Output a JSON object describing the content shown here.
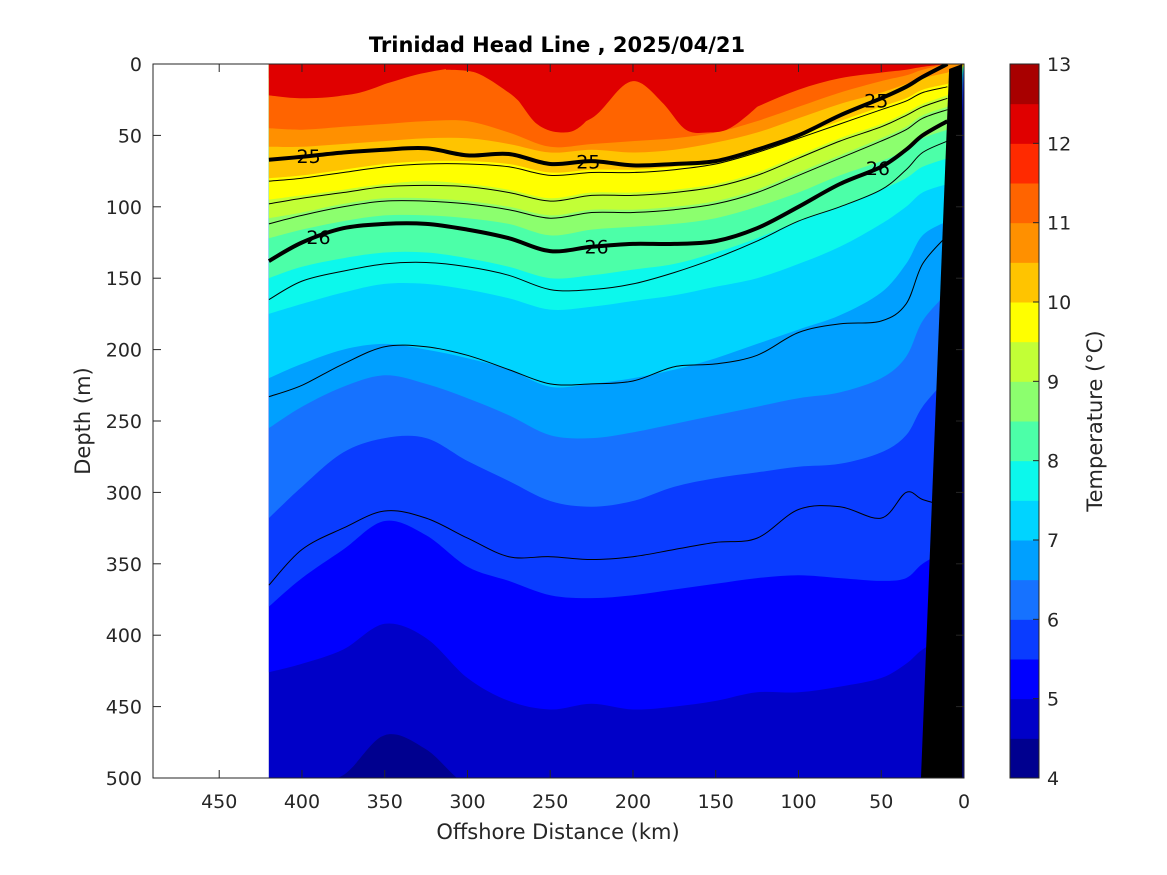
{
  "chart_data": {
    "type": "heatmap",
    "subtype": "filled-contour-section",
    "title": "Trinidad Head Line , 2025/04/21",
    "xlabel": "Offshore Distance (km)",
    "ylabel": "Depth (m)",
    "xlim": [
      490,
      0
    ],
    "ylim": [
      0,
      500
    ],
    "x_reversed": true,
    "y_reversed": true,
    "xticks": [
      450,
      400,
      350,
      300,
      250,
      200,
      150,
      100,
      50,
      0
    ],
    "yticks": [
      0,
      50,
      100,
      150,
      200,
      250,
      300,
      350,
      400,
      450,
      500
    ],
    "data_extent_km": [
      420,
      0
    ],
    "colorbar": {
      "label": "Temperature (°C)",
      "range": [
        4,
        13
      ],
      "ticks": [
        4,
        5,
        6,
        7,
        8,
        9,
        10,
        11,
        12,
        13
      ],
      "levels": [
        {
          "from": 4.0,
          "to": 4.5,
          "color": "#00008f"
        },
        {
          "from": 4.5,
          "to": 5.0,
          "color": "#0000c8"
        },
        {
          "from": 5.0,
          "to": 5.5,
          "color": "#0000ff"
        },
        {
          "from": 5.5,
          "to": 6.0,
          "color": "#0a3cff"
        },
        {
          "from": 6.0,
          "to": 6.5,
          "color": "#1672ff"
        },
        {
          "from": 6.5,
          "to": 7.0,
          "color": "#00a0ff"
        },
        {
          "from": 7.0,
          "to": 7.5,
          "color": "#00d4ff"
        },
        {
          "from": 7.5,
          "to": 8.0,
          "color": "#0cf8ec"
        },
        {
          "from": 8.0,
          "to": 8.5,
          "color": "#4cffa8"
        },
        {
          "from": 8.5,
          "to": 9.0,
          "color": "#8cff6e"
        },
        {
          "from": 9.0,
          "to": 9.5,
          "color": "#c2ff36"
        },
        {
          "from": 9.5,
          "to": 10.0,
          "color": "#ffff00"
        },
        {
          "from": 10.0,
          "to": 10.5,
          "color": "#ffc400"
        },
        {
          "from": 10.5,
          "to": 11.0,
          "color": "#ff9000"
        },
        {
          "from": 11.0,
          "to": 11.5,
          "color": "#ff6400"
        },
        {
          "from": 11.5,
          "to": 12.0,
          "color": "#ff2a00"
        },
        {
          "from": 12.0,
          "to": 12.5,
          "color": "#e00000"
        },
        {
          "from": 12.5,
          "to": 13.0,
          "color": "#a80000"
        }
      ]
    },
    "isotherm_depths": {
      "x_km": [
        420,
        400,
        375,
        350,
        325,
        300,
        275,
        250,
        225,
        200,
        175,
        150,
        125,
        100,
        75,
        50,
        35,
        25,
        10
      ],
      "levels": [
        {
          "temp": 12.0,
          "depth": [
            22,
            24,
            22,
            14,
            6,
            4,
            20,
            44,
            38,
            12,
            34,
            44,
            30,
            18,
            10,
            6,
            4,
            2,
            0
          ]
        },
        {
          "temp": 11.0,
          "depth": [
            45,
            46,
            44,
            42,
            40,
            40,
            48,
            58,
            56,
            54,
            52,
            48,
            40,
            30,
            20,
            12,
            8,
            4,
            0
          ]
        },
        {
          "temp": 10.5,
          "depth": [
            58,
            58,
            56,
            54,
            52,
            52,
            56,
            62,
            60,
            62,
            60,
            55,
            48,
            38,
            28,
            20,
            14,
            10,
            6
          ]
        },
        {
          "temp": 10.0,
          "depth": [
            80,
            78,
            74,
            70,
            68,
            68,
            70,
            76,
            74,
            74,
            72,
            68,
            60,
            50,
            40,
            30,
            24,
            18,
            14
          ]
        },
        {
          "temp": 9.5,
          "depth": [
            95,
            92,
            88,
            84,
            82,
            84,
            88,
            94,
            90,
            90,
            88,
            84,
            76,
            64,
            52,
            42,
            34,
            28,
            22
          ]
        },
        {
          "temp": 9.0,
          "depth": [
            108,
            104,
            98,
            94,
            94,
            96,
            100,
            106,
            102,
            102,
            100,
            96,
            88,
            76,
            64,
            52,
            44,
            36,
            30
          ]
        },
        {
          "temp": 8.5,
          "depth": [
            122,
            116,
            110,
            106,
            106,
            108,
            112,
            120,
            116,
            114,
            112,
            108,
            100,
            90,
            78,
            68,
            60,
            52,
            46
          ]
        },
        {
          "temp": 8.0,
          "depth": [
            150,
            142,
            136,
            132,
            132,
            136,
            142,
            150,
            148,
            144,
            140,
            132,
            122,
            110,
            100,
            88,
            80,
            72,
            66
          ]
        },
        {
          "temp": 7.5,
          "depth": [
            175,
            168,
            160,
            154,
            154,
            158,
            164,
            172,
            170,
            166,
            162,
            156,
            150,
            140,
            128,
            112,
            100,
            90,
            84
          ]
        },
        {
          "temp": 7.0,
          "depth": [
            220,
            210,
            200,
            196,
            200,
            206,
            214,
            226,
            224,
            220,
            214,
            206,
            196,
            186,
            176,
            160,
            140,
            120,
            110
          ]
        },
        {
          "temp": 6.5,
          "depth": [
            255,
            240,
            226,
            218,
            224,
            234,
            246,
            260,
            262,
            258,
            252,
            246,
            240,
            234,
            230,
            220,
            205,
            180,
            160
          ]
        },
        {
          "temp": 6.0,
          "depth": [
            318,
            296,
            272,
            262,
            262,
            278,
            292,
            306,
            310,
            306,
            296,
            290,
            286,
            282,
            280,
            272,
            260,
            240,
            220
          ]
        },
        {
          "temp": 5.5,
          "depth": [
            380,
            360,
            340,
            320,
            330,
            352,
            362,
            372,
            374,
            372,
            368,
            364,
            360,
            358,
            360,
            362,
            360,
            350,
            340
          ]
        },
        {
          "temp": 5.0,
          "depth": [
            426,
            420,
            410,
            392,
            402,
            430,
            446,
            452,
            448,
            452,
            450,
            446,
            440,
            440,
            436,
            430,
            420,
            410,
            400
          ]
        },
        {
          "temp": 4.5,
          "depth": [
            505,
            505,
            498,
            470,
            480,
            505,
            505,
            505,
            505,
            505,
            505,
            505,
            505,
            505,
            505,
            505,
            505,
            505,
            505
          ]
        }
      ]
    },
    "density_contours": {
      "x_km": [
        420,
        400,
        375,
        350,
        325,
        300,
        275,
        250,
        225,
        200,
        175,
        150,
        125,
        100,
        75,
        50,
        35,
        25,
        10
      ],
      "thin_lines": [
        {
          "depth": [
            82,
            80,
            76,
            72,
            70,
            70,
            72,
            78,
            76,
            76,
            74,
            70,
            62,
            52,
            42,
            32,
            26,
            20,
            16
          ]
        },
        {
          "depth": [
            98,
            94,
            90,
            86,
            85,
            86,
            90,
            96,
            92,
            92,
            90,
            86,
            78,
            66,
            54,
            44,
            36,
            30,
            24
          ]
        },
        {
          "depth": [
            112,
            106,
            100,
            96,
            96,
            98,
            102,
            108,
            104,
            104,
            102,
            98,
            90,
            78,
            66,
            54,
            46,
            38,
            32
          ]
        },
        {
          "depth": [
            165,
            152,
            145,
            140,
            139,
            142,
            148,
            158,
            158,
            154,
            146,
            136,
            124,
            110,
            100,
            88,
            74,
            62,
            54
          ]
        },
        {
          "depth": [
            233,
            225,
            210,
            198,
            198,
            204,
            214,
            224,
            224,
            222,
            212,
            210,
            204,
            188,
            182,
            180,
            168,
            140,
            120
          ]
        },
        {
          "depth": [
            365,
            340,
            325,
            313,
            318,
            332,
            345,
            345,
            347,
            345,
            340,
            335,
            332,
            312,
            310,
            318,
            300,
            305,
            310
          ]
        }
      ],
      "labeled": [
        {
          "label": "25",
          "depth": [
            67,
            65,
            62,
            60,
            59,
            64,
            63,
            70,
            68,
            71,
            70,
            68,
            60,
            50,
            36,
            24,
            16,
            9,
            0
          ]
        },
        {
          "label": "26",
          "depth": [
            138,
            125,
            115,
            112,
            112,
            116,
            122,
            131,
            128,
            126,
            126,
            124,
            115,
            100,
            84,
            72,
            60,
            50,
            40
          ]
        }
      ],
      "labels_km": {
        "25": [
          396,
          227,
          53
        ],
        "26": [
          390,
          222,
          52
        ]
      }
    },
    "surface_warm_patches": [
      {
        "x_km": [
          420,
          412,
          395,
          378,
          365,
          352,
          338,
          325
        ],
        "top": [
          0,
          0,
          0,
          0,
          0,
          0,
          0,
          0
        ],
        "bottom": [
          10,
          16,
          20,
          22,
          20,
          15,
          8,
          4
        ]
      },
      {
        "x_km": [
          313,
          295,
          275,
          258,
          242,
          230,
          215,
          195,
          180,
          168,
          155,
          140,
          118,
          108
        ],
        "top": [
          0,
          0,
          0,
          0,
          0,
          0,
          0,
          0,
          0,
          0,
          0,
          0,
          0,
          0
        ],
        "bottom": [
          4,
          6,
          18,
          42,
          48,
          42,
          20,
          10,
          30,
          46,
          48,
          44,
          22,
          4
        ]
      }
    ],
    "topography_label": "seafloor (black wedge)"
  }
}
